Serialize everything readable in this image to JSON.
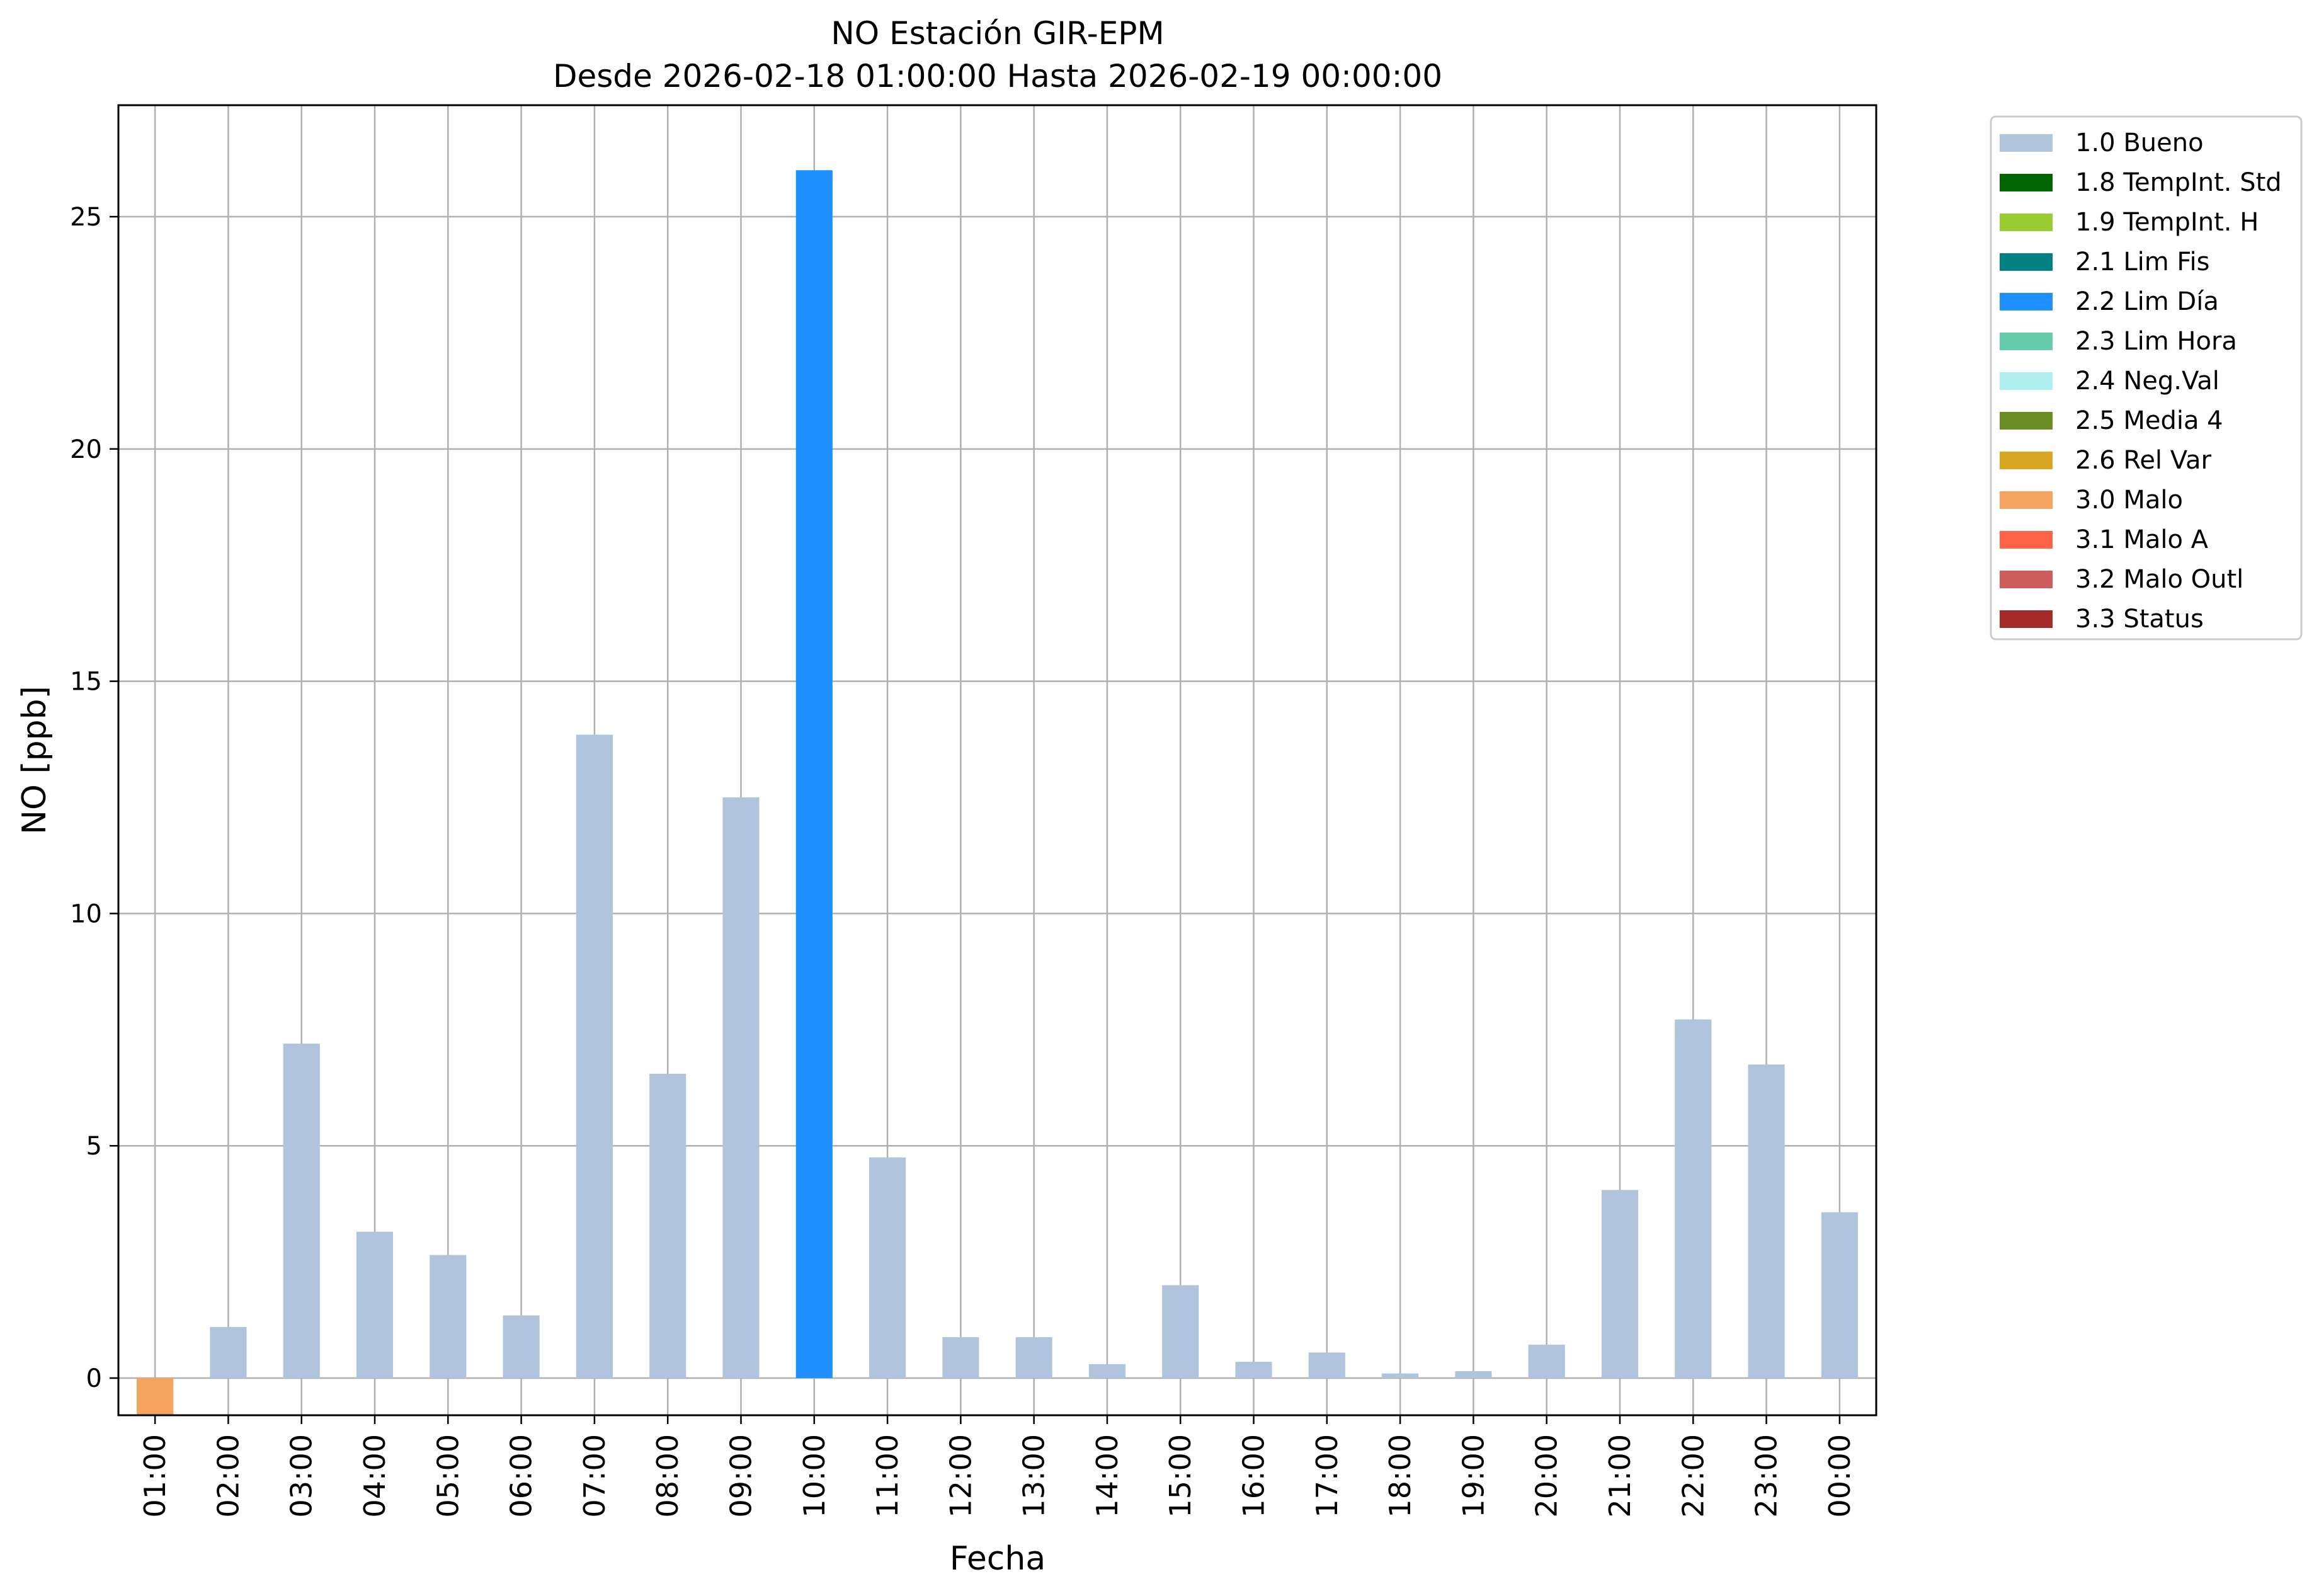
{
  "chart_data": {
    "type": "bar",
    "title": "NO Estación GIR-EPM",
    "subtitle": "Desde 2026-02-18 01:00:00 Hasta 2026-02-19 00:00:00",
    "xlabel": "Fecha",
    "ylabel": "NO [ppb]",
    "ylim": [
      -0.8,
      27.4
    ],
    "yticks": [
      0,
      5,
      10,
      15,
      20,
      25
    ],
    "grid": true,
    "legend_position": "outside-top-right",
    "categories": [
      "01:00",
      "02:00",
      "03:00",
      "04:00",
      "05:00",
      "06:00",
      "07:00",
      "08:00",
      "09:00",
      "10:00",
      "11:00",
      "12:00",
      "13:00",
      "14:00",
      "15:00",
      "16:00",
      "17:00",
      "18:00",
      "19:00",
      "20:00",
      "21:00",
      "22:00",
      "23:00",
      "00:00"
    ],
    "values": [
      -0.8,
      1.1,
      7.2,
      3.15,
      2.65,
      1.35,
      13.85,
      6.55,
      12.5,
      26.0,
      4.75,
      0.88,
      0.88,
      0.3,
      2.0,
      0.35,
      0.55,
      0.1,
      0.15,
      0.72,
      4.05,
      7.72,
      6.75,
      3.57
    ],
    "flags": [
      "3.0",
      "1.0",
      "1.0",
      "1.0",
      "1.0",
      "1.0",
      "1.0",
      "1.0",
      "1.0",
      "2.2",
      "1.0",
      "1.0",
      "1.0",
      "1.0",
      "1.0",
      "1.0",
      "1.0",
      "1.0",
      "1.0",
      "1.0",
      "1.0",
      "1.0",
      "1.0",
      "1.0"
    ],
    "legend": [
      {
        "code": "1.0",
        "label": "1.0 Bueno",
        "color": "#b0c4de"
      },
      {
        "code": "1.8",
        "label": "1.8 TempInt. Std",
        "color": "#006400"
      },
      {
        "code": "1.9",
        "label": "1.9 TempInt. H",
        "color": "#9acd32"
      },
      {
        "code": "2.1",
        "label": "2.1 Lim Fis",
        "color": "#008080"
      },
      {
        "code": "2.2",
        "label": "2.2 Lim Día",
        "color": "#1e90ff"
      },
      {
        "code": "2.3",
        "label": "2.3 Lim Hora",
        "color": "#66cdaa"
      },
      {
        "code": "2.4",
        "label": "2.4 Neg.Val",
        "color": "#afeeee"
      },
      {
        "code": "2.5",
        "label": "2.5 Media 4",
        "color": "#6b8e23"
      },
      {
        "code": "2.6",
        "label": "2.6 Rel Var",
        "color": "#daa520"
      },
      {
        "code": "3.0",
        "label": "3.0 Malo",
        "color": "#f4a460"
      },
      {
        "code": "3.1",
        "label": "3.1 Malo A",
        "color": "#ff6347"
      },
      {
        "code": "3.2",
        "label": "3.2 Malo Outl",
        "color": "#cd5c5c"
      },
      {
        "code": "3.3",
        "label": "3.3 Status",
        "color": "#a52a2a"
      }
    ]
  }
}
